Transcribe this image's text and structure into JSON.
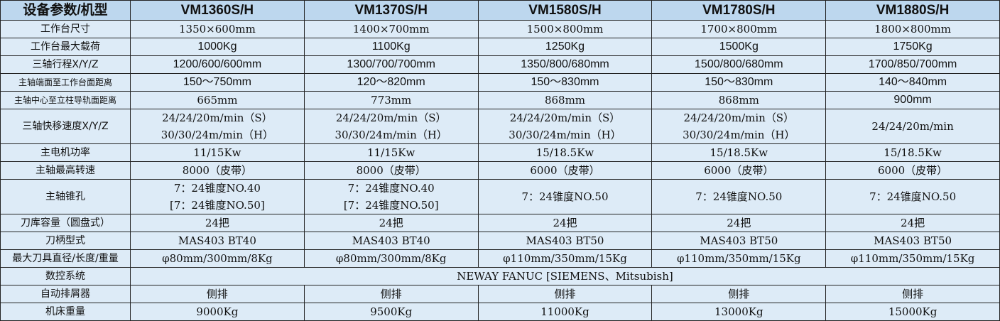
{
  "header": [
    "设备参数/机型",
    "VM1360S/H",
    "VM1370S/H",
    "VM1580S/H",
    "VM1780S/H",
    "VM1880S/H"
  ],
  "rows": [
    {
      "label": "工作台尺寸",
      "values": [
        "1350×600mm",
        "1400×700mm",
        "1500×800mm",
        "1700×800mm",
        "1800×800mm"
      ]
    },
    {
      "label": "工作台最大载荷",
      "values": [
        "1000Kg",
        "1100Kg",
        "1250Kg",
        "1500Kg",
        "1750Kg"
      ]
    },
    {
      "label": "三轴行程X/Y/Z",
      "values": [
        "1200/600/600mm",
        "1300/700/700mm",
        "1350/800/680mm",
        "1500/800/680mm",
        "1700/850/700mm"
      ]
    },
    {
      "label": "主轴端面至工作台面距离",
      "values": [
        "150～750mm",
        "120～820mm",
        "150～830mm",
        "150～830mm",
        "140～840mm"
      ]
    },
    {
      "label": "主轴中心至立柱导轨面距离",
      "values": [
        "665mm",
        "773mm",
        "868mm",
        "868mm",
        "900mm"
      ]
    },
    {
      "label": "三轴快移速度X/Y/Z",
      "values": [
        [
          "24/24/20m/min（S）",
          "30/30/24m/min（H）"
        ],
        [
          "24/24/20m/min（S）",
          "30/30/24m/min（H）"
        ],
        [
          "24/24/20m/min（S）",
          "30/30/24m/min（H）"
        ],
        [
          "24/24/20m/min（S）",
          "30/30/24m/min（H）"
        ],
        [
          "24/24/20m/min"
        ]
      ]
    },
    {
      "label": "主电机功率",
      "values": [
        "11/15Kw",
        "11/15Kw",
        "15/18.5Kw",
        "15/18.5Kw",
        "15/18.5Kw"
      ]
    },
    {
      "label": "主轴最高转速",
      "values": [
        "8000（皮带）",
        "8000（皮带）",
        "6000（皮带）",
        "6000（皮带）",
        "6000（皮带）"
      ]
    },
    {
      "label": "主轴锥孔",
      "values": [
        [
          "7：24锥度NO.40",
          "[7：24锥度NO.50]"
        ],
        [
          "7：24锥度NO.40",
          "[7：24锥度NO.50]"
        ],
        [
          "7：24锥度NO.50"
        ],
        [
          "7：24锥度NO.50"
        ],
        [
          "7：24锥度NO.50"
        ]
      ]
    },
    {
      "label": "刀库容量（圆盘式）",
      "values": [
        "24把",
        "24把",
        "24把",
        "24把",
        "24把"
      ]
    },
    {
      "label": "刀柄型式",
      "values": [
        "MAS403 BT40",
        "MAS403 BT40",
        "MAS403 BT50",
        "MAS403 BT50",
        "MAS403 BT50"
      ]
    },
    {
      "label": "最大刀具直径/长度/重量",
      "values": [
        "φ80mm/300mm/8Kg",
        "φ80mm/300mm/8Kg",
        "φ110mm/350mm/15Kg",
        "φ110mm/350mm/15Kg",
        "φ110mm/350mm/15Kg"
      ]
    },
    {
      "label": "数控系统",
      "merged": "NEWAY FANUC  [SIEMENS、Mitsubish]"
    },
    {
      "label": "自动排屑器",
      "values": [
        "侧排",
        "侧排",
        "侧排",
        "侧排",
        "侧排"
      ]
    },
    {
      "label": "机床重量",
      "values": [
        "9000Kg",
        "9500Kg",
        "11000Kg",
        "13000Kg",
        "15000Kg"
      ]
    }
  ]
}
